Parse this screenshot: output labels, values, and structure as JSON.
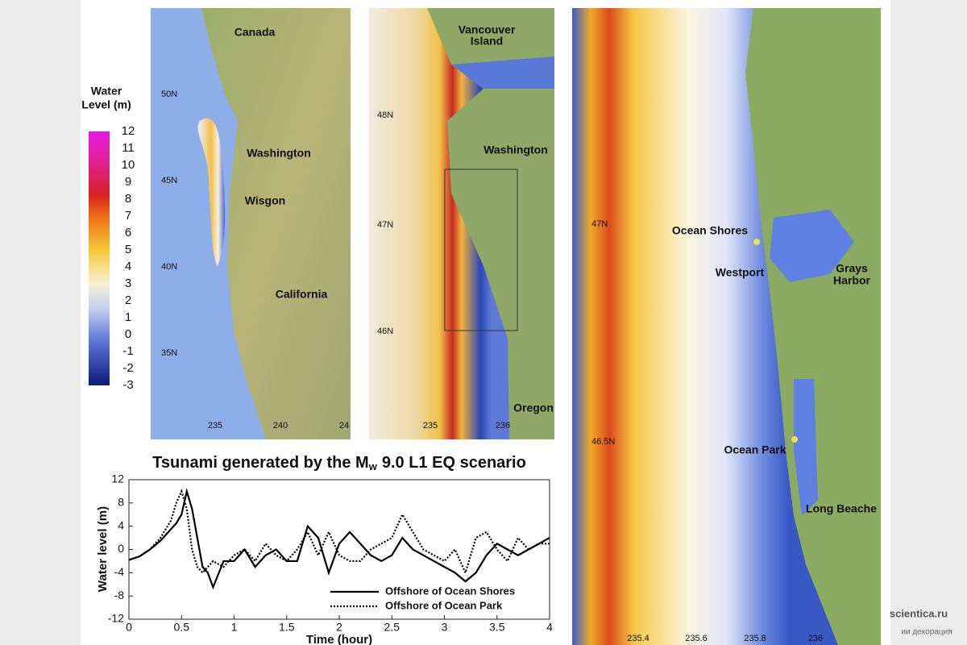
{
  "maps": {
    "colorbar": {
      "title_lines": [
        "Water",
        "Level (m)"
      ],
      "ticks": [
        12,
        11,
        10,
        9,
        8,
        7,
        6,
        5,
        4,
        3,
        2,
        1,
        0,
        -1,
        -2,
        -3
      ]
    },
    "overview": {
      "places": [
        "Canada",
        "Washington",
        "Wisgon",
        "California"
      ],
      "lat_labels": [
        "50N",
        "45N",
        "40N",
        "35N"
      ],
      "lon_labels": [
        "235",
        "240",
        "24"
      ]
    },
    "regional": {
      "places": [
        "Vancouver",
        "Island",
        "Washington",
        "Oregon"
      ],
      "lat_labels": [
        "48N",
        "47N",
        "46N"
      ],
      "lon_labels": [
        "235",
        "236"
      ]
    },
    "local": {
      "places": [
        "Ocean Shores",
        "Westport",
        "Grays",
        "Harbor",
        "Ocean Park",
        "Long Beache"
      ],
      "lat_labels": [
        "47N",
        "46.5N"
      ],
      "lon_labels": [
        "235.4",
        "235.6",
        "235.8",
        "236"
      ]
    }
  },
  "watermark": [
    "scientica.ru",
    "ии декорация"
  ],
  "chart_data": {
    "type": "line",
    "title": {
      "prefix": "Tsunami generated by the M",
      "subscript": "w",
      "suffix": "9.0 L1 EQ scenario"
    },
    "x_label": "Time (hour)",
    "y_label": "Water level (m)",
    "x": [
      0,
      0.1,
      0.2,
      0.3,
      0.4,
      0.45,
      0.5,
      0.55,
      0.6,
      0.65,
      0.7,
      0.75,
      0.8,
      0.9,
      1.0,
      1.1,
      1.2,
      1.3,
      1.4,
      1.5,
      1.6,
      1.7,
      1.8,
      1.9,
      2.0,
      2.1,
      2.2,
      2.3,
      2.4,
      2.5,
      2.6,
      2.7,
      2.8,
      2.9,
      3.0,
      3.1,
      3.2,
      3.3,
      3.4,
      3.5,
      3.6,
      3.7,
      3.8,
      3.9,
      4.0
    ],
    "series": [
      {
        "name": "Offshore of Ocean Shores",
        "color": "#000000",
        "dash": "solid",
        "values": [
          -1.8,
          -1.2,
          0,
          1.5,
          3.5,
          4.5,
          6,
          10,
          7,
          2,
          -3,
          -4,
          -6.5,
          -2,
          -2,
          0,
          -3,
          -1,
          0,
          -2,
          -2,
          4,
          2,
          -4,
          1,
          3,
          1,
          -1,
          -2,
          -1,
          2,
          0,
          -1,
          -2,
          -3,
          -4,
          -5.5,
          -4,
          -1,
          1,
          0,
          -1,
          0,
          1,
          2
        ]
      },
      {
        "name": "Offshore of Ocean Park",
        "color": "#000000",
        "dash": "dotted",
        "values": [
          -1.8,
          -1.2,
          0,
          2,
          5,
          8,
          10,
          7,
          0,
          -3,
          -4,
          -3,
          -2,
          -3,
          -1,
          0,
          -2,
          1,
          -1,
          -2,
          0,
          3,
          -1,
          3,
          -1,
          -2,
          -2,
          0,
          1,
          2,
          6,
          3,
          0,
          -1,
          -2,
          0,
          -4,
          2,
          3,
          0,
          -2,
          2,
          0,
          1,
          1
        ]
      }
    ],
    "xlim": [
      0,
      4
    ],
    "xticks": [
      0,
      0.5,
      1,
      1.5,
      2,
      2.5,
      3,
      3.5,
      4
    ],
    "ylim": [
      -12,
      12
    ],
    "yticks": [
      -12,
      -8,
      -4,
      0,
      4,
      8,
      12
    ],
    "legend": "lower right"
  }
}
